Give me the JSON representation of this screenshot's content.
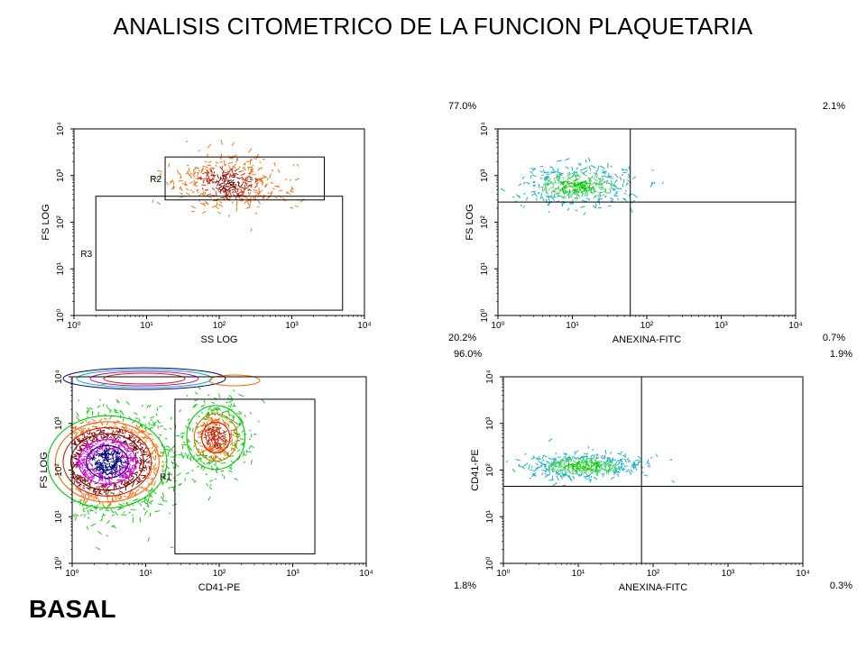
{
  "page": {
    "title": "ANALISIS CITOMETRICO DE LA FUNCION PLAQUETARIA",
    "footer_label": "BASAL"
  },
  "colors": {
    "axis": "#000000",
    "gate": "#000000",
    "density_low": "#ff6600",
    "density_mid": "#cc2200",
    "density_high": "#800000",
    "green": "#00cc00",
    "cyan": "#00aacc",
    "magenta": "#cc00cc",
    "navy": "#000080"
  },
  "chart_data": [
    {
      "type": "scatter",
      "id": "plot-ss-fs",
      "xlabel": "SS LOG",
      "ylabel": "FS LOG",
      "x_scale": "log",
      "y_scale": "log",
      "xlim": [
        1,
        10000
      ],
      "ylim": [
        1,
        10000
      ],
      "x_ticks": [
        "10⁰",
        "10¹",
        "10²",
        "10³",
        "10⁴"
      ],
      "y_ticks": [
        "10⁰",
        "10¹",
        "10²",
        "10³",
        "10⁴"
      ],
      "gates": [
        {
          "name": "R2",
          "x": [
            18,
            2800
          ],
          "y": [
            300,
            2500
          ]
        },
        {
          "name": "R3",
          "x": [
            2,
            5000
          ],
          "y": [
            1.3,
            360
          ]
        }
      ],
      "populations": [
        {
          "center_x": 130,
          "center_y": 700,
          "spread_x": 0.35,
          "spread_y": 0.28,
          "palette": "orange-density"
        }
      ]
    },
    {
      "type": "scatter",
      "id": "plot-anexina-fs",
      "xlabel": "ANEXINA-FITC",
      "ylabel": "FS LOG",
      "x_scale": "log",
      "y_scale": "log",
      "xlim": [
        1,
        10000
      ],
      "ylim": [
        1,
        10000
      ],
      "x_ticks": [
        "10⁰",
        "10¹",
        "10²",
        "10³",
        "10⁴"
      ],
      "y_ticks": [
        "10⁰",
        "10¹",
        "10²",
        "10³",
        "10⁴"
      ],
      "quadrant_divider": {
        "x": 60,
        "y": 270
      },
      "quadrant_percentages": {
        "top_left": "77.0%",
        "top_right": "2.1%",
        "bottom_left": "20.2%",
        "bottom_right": "0.7%"
      },
      "populations": [
        {
          "center_x": 12,
          "center_y": 600,
          "spread_x": 0.38,
          "spread_y": 0.22,
          "palette": "cyan-green-density"
        }
      ]
    },
    {
      "type": "scatter",
      "id": "plot-cd41-fs",
      "xlabel": "CD41-PE",
      "ylabel": "FS LOG",
      "x_scale": "log",
      "y_scale": "log",
      "xlim": [
        1,
        10000
      ],
      "ylim": [
        1,
        10000
      ],
      "x_ticks": [
        "10⁰",
        "10¹",
        "10²",
        "10³",
        "10⁴"
      ],
      "y_ticks": [
        "10⁰",
        "10¹",
        "10²",
        "10³",
        "10⁴"
      ],
      "gates": [
        {
          "name": "R1",
          "x": [
            25,
            2000
          ],
          "y": [
            1.6,
            3300
          ]
        }
      ],
      "populations": [
        {
          "center_x": 3,
          "center_y": 150,
          "spread_x": 0.45,
          "spread_y": 0.55,
          "palette": "rainbow-contour"
        },
        {
          "center_x": 90,
          "center_y": 500,
          "spread_x": 0.22,
          "spread_y": 0.38,
          "palette": "green-orange-contour"
        }
      ]
    },
    {
      "type": "scatter",
      "id": "plot-anexina-cd41",
      "xlabel": "ANEXINA-FITC",
      "ylabel": "CD41-PE",
      "x_scale": "log",
      "y_scale": "log",
      "xlim": [
        1,
        10000
      ],
      "ylim": [
        1,
        10000
      ],
      "x_ticks": [
        "10⁰",
        "10¹",
        "10²",
        "10³",
        "10⁴"
      ],
      "y_ticks": [
        "10⁰",
        "10¹",
        "10²",
        "10³",
        "10⁴"
      ],
      "quadrant_divider": {
        "x": 70,
        "y": 45
      },
      "quadrant_percentages": {
        "top_left": "96.0%",
        "top_right": "1.9%",
        "bottom_left": "1.8%",
        "bottom_right": "0.3%"
      },
      "populations": [
        {
          "center_x": 12,
          "center_y": 120,
          "spread_x": 0.38,
          "spread_y": 0.14,
          "palette": "cyan-green-density"
        }
      ]
    }
  ]
}
